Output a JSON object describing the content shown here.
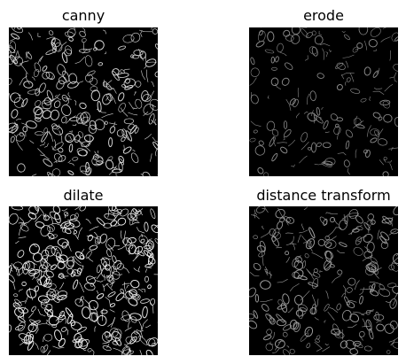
{
  "figure": {
    "background": "#ffffff",
    "panels": [
      {
        "title": "canny",
        "stroke": "#d9d9d9",
        "density": 1.0,
        "seed": 11
      },
      {
        "title": "erode",
        "stroke": "#8a8a8a",
        "density": 0.55,
        "seed": 23
      },
      {
        "title": "dilate",
        "stroke": "#f2f2f2",
        "density": 1.35,
        "seed": 37
      },
      {
        "title": "distance transform",
        "stroke": "#9c9c9c",
        "density": 0.9,
        "seed": 53
      }
    ]
  }
}
